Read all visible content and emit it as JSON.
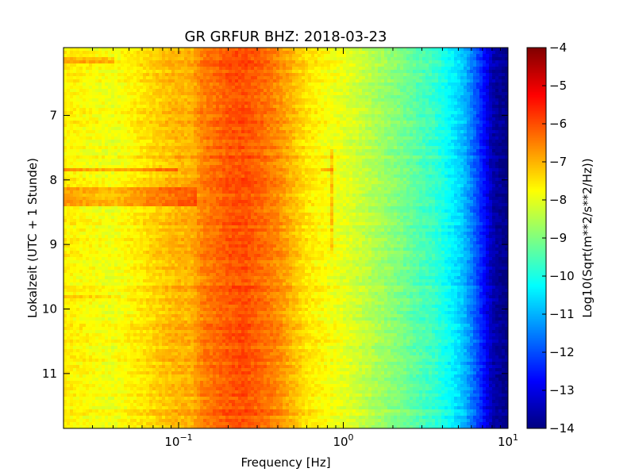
{
  "chart_data": {
    "type": "heatmap",
    "title": "GR GRFUR BHZ: 2018-03-23",
    "xlabel": "Frequency [Hz]",
    "ylabel": "Lokalzeit (UTC + 1 Stunde)",
    "xscale": "log",
    "xlim": [
      0.02,
      10
    ],
    "ylim": [
      5.95,
      11.85
    ],
    "y_direction": "downward",
    "x_ticks": [
      {
        "value": 0.1,
        "base": "10",
        "exp": "−1"
      },
      {
        "value": 1,
        "base": "10",
        "exp": "0"
      },
      {
        "value": 10,
        "base": "10",
        "exp": "1"
      }
    ],
    "y_ticks": [
      {
        "value": 7,
        "label": "7"
      },
      {
        "value": 8,
        "label": "8"
      },
      {
        "value": 9,
        "label": "9"
      },
      {
        "value": 10,
        "label": "10"
      },
      {
        "value": 11,
        "label": "11"
      }
    ],
    "colorbar": {
      "label": "Log10(Sqrt(m**2/s**2/Hz))",
      "colormap": "jet",
      "range": [
        -14,
        -4
      ],
      "ticks": [
        {
          "value": -4,
          "label": "−4"
        },
        {
          "value": -5,
          "label": "−5"
        },
        {
          "value": -6,
          "label": "−6"
        },
        {
          "value": -7,
          "label": "−7"
        },
        {
          "value": -8,
          "label": "−8"
        },
        {
          "value": -9,
          "label": "−9"
        },
        {
          "value": -10,
          "label": "−10"
        },
        {
          "value": -11,
          "label": "−11"
        },
        {
          "value": -12,
          "label": "−12"
        },
        {
          "value": -13,
          "label": "−13"
        },
        {
          "value": -14,
          "label": "−14"
        }
      ]
    },
    "spectrum_profile": {
      "freq_hz": [
        0.02,
        0.04,
        0.06,
        0.08,
        0.1,
        0.12,
        0.14,
        0.17,
        0.2,
        0.25,
        0.3,
        0.4,
        0.5,
        0.6,
        0.8,
        1.0,
        1.3,
        1.6,
        2.0,
        2.5,
        3.0,
        3.5,
        4.0,
        5.0,
        5.5,
        6.0,
        6.5,
        7.0,
        7.5,
        8.0,
        9.0,
        10.0
      ],
      "value": [
        -7.6,
        -7.9,
        -7.5,
        -7.2,
        -7.0,
        -7.0,
        -6.5,
        -6.3,
        -6.1,
        -6.0,
        -6.2,
        -6.6,
        -7.1,
        -7.5,
        -7.8,
        -8.0,
        -8.3,
        -8.6,
        -8.9,
        -9.2,
        -9.5,
        -9.7,
        -10.0,
        -10.6,
        -11.0,
        -11.5,
        -12.0,
        -12.5,
        -13.0,
        -13.5,
        -13.8,
        -14.0
      ]
    },
    "features": [
      {
        "type": "time_band",
        "time_from": 8.12,
        "time_to": 8.42,
        "freq_from": 0.02,
        "freq_to": 0.13,
        "value_offset": 0.8
      },
      {
        "type": "time_line",
        "time": 7.85,
        "freq_from": 0.02,
        "freq_to": 0.1,
        "value_offset": 0.8
      },
      {
        "type": "time_line",
        "time": 6.15,
        "freq_from": 0.02,
        "freq_to": 0.04,
        "value_offset": 0.7
      },
      {
        "type": "time_line",
        "time": 9.82,
        "freq_from": 0.02,
        "freq_to": 0.045,
        "value_offset": 0.5
      },
      {
        "type": "freq_line",
        "freq": 0.85,
        "time_from": 7.5,
        "time_to": 9.1,
        "value_offset": 0.6
      },
      {
        "type": "spot",
        "freq": 0.8,
        "time": 7.85,
        "value_offset": 0.7
      }
    ]
  }
}
